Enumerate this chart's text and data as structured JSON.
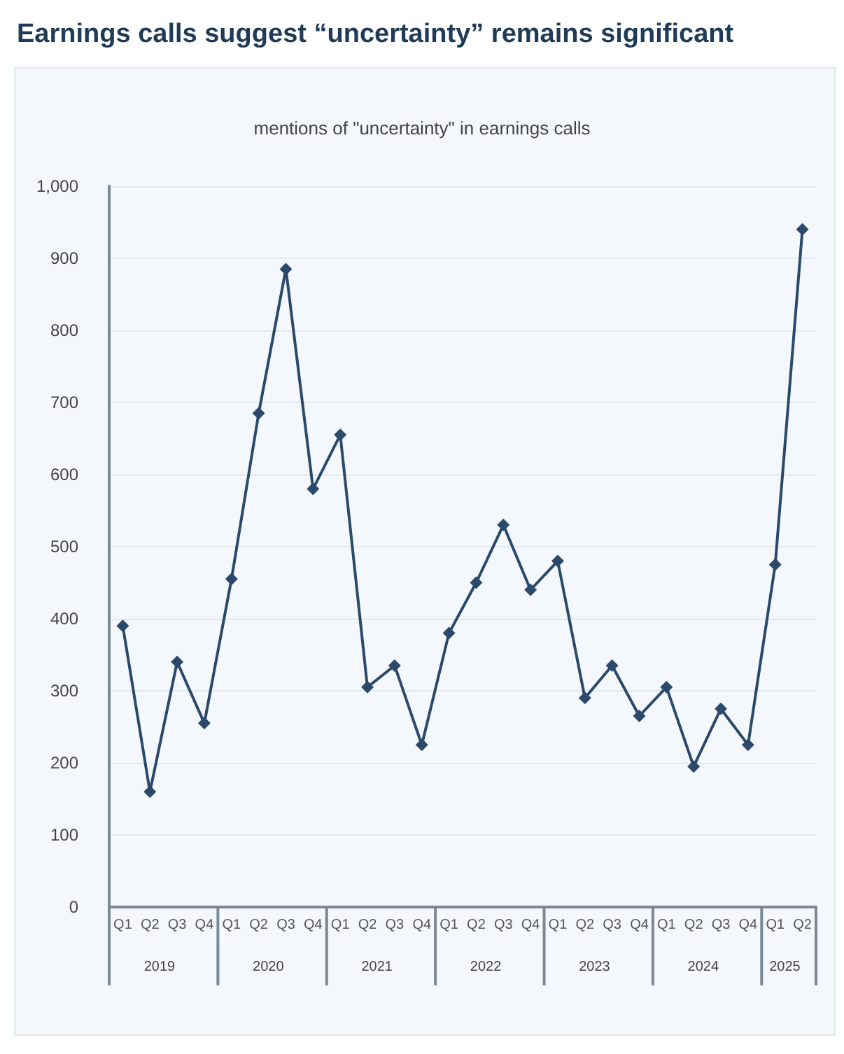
{
  "chart_data": {
    "type": "line",
    "title": "Earnings calls suggest “uncertainty” remains significant",
    "subtitle": "mentions of \"uncertainty\" in earnings calls",
    "categories": [
      "Q1",
      "Q2",
      "Q3",
      "Q4",
      "Q1",
      "Q2",
      "Q3",
      "Q4",
      "Q1",
      "Q2",
      "Q3",
      "Q4",
      "Q1",
      "Q2",
      "Q3",
      "Q4",
      "Q1",
      "Q2",
      "Q3",
      "Q4",
      "Q1",
      "Q2",
      "Q3",
      "Q4",
      "Q1",
      "Q2"
    ],
    "series": [
      {
        "color": "#2b4a6b",
        "values": [
          390,
          160,
          340,
          255,
          455,
          685,
          885,
          580,
          655,
          305,
          335,
          225,
          380,
          450,
          530,
          440,
          480,
          290,
          335,
          265,
          305,
          195,
          275,
          225,
          475,
          940
        ]
      }
    ],
    "annotations": [
      "2019",
      "2020",
      "2021",
      "2022",
      "2023",
      "2024",
      "2025"
    ],
    "ylim": [
      0,
      1000
    ],
    "yticks": [
      0,
      100,
      200,
      300,
      400,
      500,
      600,
      700,
      800,
      900,
      {
        "value": 1000,
        "label": "1,000"
      }
    ],
    "grid": "y",
    "marker": "diamond",
    "line_style": "solid"
  }
}
